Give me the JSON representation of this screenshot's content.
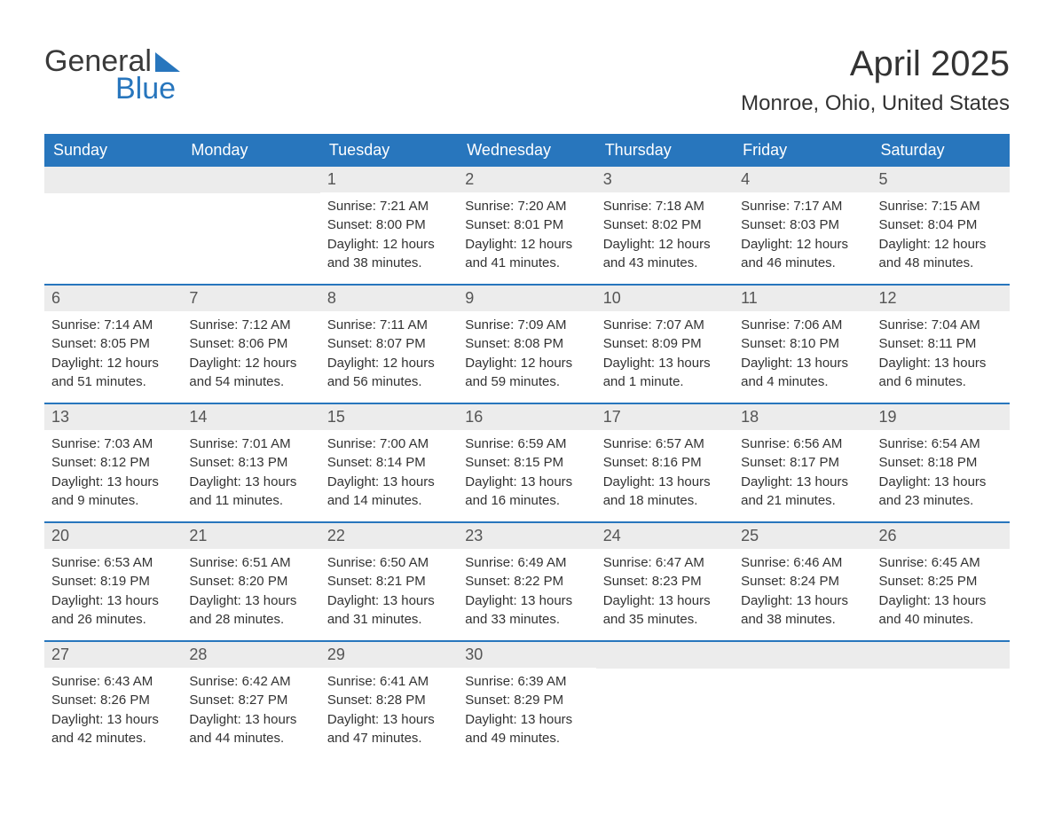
{
  "logo": {
    "top": "General",
    "bottom": "Blue",
    "top_color": "#3a3a3a",
    "bottom_color": "#2876bd",
    "accent_color": "#2876bd"
  },
  "title": "April 2025",
  "location": "Monroe, Ohio, United States",
  "colors": {
    "header_bg": "#2876bd",
    "header_text": "#ffffff",
    "daynum_bg": "#ececec",
    "daynum_text": "#555555",
    "body_text": "#333333",
    "week_border": "#2876bd",
    "page_bg": "#ffffff"
  },
  "day_names": [
    "Sunday",
    "Monday",
    "Tuesday",
    "Wednesday",
    "Thursday",
    "Friday",
    "Saturday"
  ],
  "weeks": [
    [
      {
        "empty": true
      },
      {
        "empty": true
      },
      {
        "day": "1",
        "sunrise": "Sunrise: 7:21 AM",
        "sunset": "Sunset: 8:00 PM",
        "dl1": "Daylight: 12 hours",
        "dl2": "and 38 minutes."
      },
      {
        "day": "2",
        "sunrise": "Sunrise: 7:20 AM",
        "sunset": "Sunset: 8:01 PM",
        "dl1": "Daylight: 12 hours",
        "dl2": "and 41 minutes."
      },
      {
        "day": "3",
        "sunrise": "Sunrise: 7:18 AM",
        "sunset": "Sunset: 8:02 PM",
        "dl1": "Daylight: 12 hours",
        "dl2": "and 43 minutes."
      },
      {
        "day": "4",
        "sunrise": "Sunrise: 7:17 AM",
        "sunset": "Sunset: 8:03 PM",
        "dl1": "Daylight: 12 hours",
        "dl2": "and 46 minutes."
      },
      {
        "day": "5",
        "sunrise": "Sunrise: 7:15 AM",
        "sunset": "Sunset: 8:04 PM",
        "dl1": "Daylight: 12 hours",
        "dl2": "and 48 minutes."
      }
    ],
    [
      {
        "day": "6",
        "sunrise": "Sunrise: 7:14 AM",
        "sunset": "Sunset: 8:05 PM",
        "dl1": "Daylight: 12 hours",
        "dl2": "and 51 minutes."
      },
      {
        "day": "7",
        "sunrise": "Sunrise: 7:12 AM",
        "sunset": "Sunset: 8:06 PM",
        "dl1": "Daylight: 12 hours",
        "dl2": "and 54 minutes."
      },
      {
        "day": "8",
        "sunrise": "Sunrise: 7:11 AM",
        "sunset": "Sunset: 8:07 PM",
        "dl1": "Daylight: 12 hours",
        "dl2": "and 56 minutes."
      },
      {
        "day": "9",
        "sunrise": "Sunrise: 7:09 AM",
        "sunset": "Sunset: 8:08 PM",
        "dl1": "Daylight: 12 hours",
        "dl2": "and 59 minutes."
      },
      {
        "day": "10",
        "sunrise": "Sunrise: 7:07 AM",
        "sunset": "Sunset: 8:09 PM",
        "dl1": "Daylight: 13 hours",
        "dl2": "and 1 minute."
      },
      {
        "day": "11",
        "sunrise": "Sunrise: 7:06 AM",
        "sunset": "Sunset: 8:10 PM",
        "dl1": "Daylight: 13 hours",
        "dl2": "and 4 minutes."
      },
      {
        "day": "12",
        "sunrise": "Sunrise: 7:04 AM",
        "sunset": "Sunset: 8:11 PM",
        "dl1": "Daylight: 13 hours",
        "dl2": "and 6 minutes."
      }
    ],
    [
      {
        "day": "13",
        "sunrise": "Sunrise: 7:03 AM",
        "sunset": "Sunset: 8:12 PM",
        "dl1": "Daylight: 13 hours",
        "dl2": "and 9 minutes."
      },
      {
        "day": "14",
        "sunrise": "Sunrise: 7:01 AM",
        "sunset": "Sunset: 8:13 PM",
        "dl1": "Daylight: 13 hours",
        "dl2": "and 11 minutes."
      },
      {
        "day": "15",
        "sunrise": "Sunrise: 7:00 AM",
        "sunset": "Sunset: 8:14 PM",
        "dl1": "Daylight: 13 hours",
        "dl2": "and 14 minutes."
      },
      {
        "day": "16",
        "sunrise": "Sunrise: 6:59 AM",
        "sunset": "Sunset: 8:15 PM",
        "dl1": "Daylight: 13 hours",
        "dl2": "and 16 minutes."
      },
      {
        "day": "17",
        "sunrise": "Sunrise: 6:57 AM",
        "sunset": "Sunset: 8:16 PM",
        "dl1": "Daylight: 13 hours",
        "dl2": "and 18 minutes."
      },
      {
        "day": "18",
        "sunrise": "Sunrise: 6:56 AM",
        "sunset": "Sunset: 8:17 PM",
        "dl1": "Daylight: 13 hours",
        "dl2": "and 21 minutes."
      },
      {
        "day": "19",
        "sunrise": "Sunrise: 6:54 AM",
        "sunset": "Sunset: 8:18 PM",
        "dl1": "Daylight: 13 hours",
        "dl2": "and 23 minutes."
      }
    ],
    [
      {
        "day": "20",
        "sunrise": "Sunrise: 6:53 AM",
        "sunset": "Sunset: 8:19 PM",
        "dl1": "Daylight: 13 hours",
        "dl2": "and 26 minutes."
      },
      {
        "day": "21",
        "sunrise": "Sunrise: 6:51 AM",
        "sunset": "Sunset: 8:20 PM",
        "dl1": "Daylight: 13 hours",
        "dl2": "and 28 minutes."
      },
      {
        "day": "22",
        "sunrise": "Sunrise: 6:50 AM",
        "sunset": "Sunset: 8:21 PM",
        "dl1": "Daylight: 13 hours",
        "dl2": "and 31 minutes."
      },
      {
        "day": "23",
        "sunrise": "Sunrise: 6:49 AM",
        "sunset": "Sunset: 8:22 PM",
        "dl1": "Daylight: 13 hours",
        "dl2": "and 33 minutes."
      },
      {
        "day": "24",
        "sunrise": "Sunrise: 6:47 AM",
        "sunset": "Sunset: 8:23 PM",
        "dl1": "Daylight: 13 hours",
        "dl2": "and 35 minutes."
      },
      {
        "day": "25",
        "sunrise": "Sunrise: 6:46 AM",
        "sunset": "Sunset: 8:24 PM",
        "dl1": "Daylight: 13 hours",
        "dl2": "and 38 minutes."
      },
      {
        "day": "26",
        "sunrise": "Sunrise: 6:45 AM",
        "sunset": "Sunset: 8:25 PM",
        "dl1": "Daylight: 13 hours",
        "dl2": "and 40 minutes."
      }
    ],
    [
      {
        "day": "27",
        "sunrise": "Sunrise: 6:43 AM",
        "sunset": "Sunset: 8:26 PM",
        "dl1": "Daylight: 13 hours",
        "dl2": "and 42 minutes."
      },
      {
        "day": "28",
        "sunrise": "Sunrise: 6:42 AM",
        "sunset": "Sunset: 8:27 PM",
        "dl1": "Daylight: 13 hours",
        "dl2": "and 44 minutes."
      },
      {
        "day": "29",
        "sunrise": "Sunrise: 6:41 AM",
        "sunset": "Sunset: 8:28 PM",
        "dl1": "Daylight: 13 hours",
        "dl2": "and 47 minutes."
      },
      {
        "day": "30",
        "sunrise": "Sunrise: 6:39 AM",
        "sunset": "Sunset: 8:29 PM",
        "dl1": "Daylight: 13 hours",
        "dl2": "and 49 minutes."
      },
      {
        "empty": true
      },
      {
        "empty": true
      },
      {
        "empty": true
      }
    ]
  ]
}
